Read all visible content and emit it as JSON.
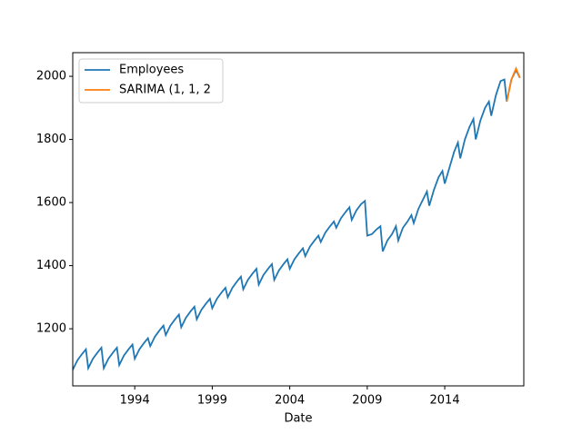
{
  "chart_data": {
    "type": "line",
    "x_label": "Date",
    "xlim": [
      1990,
      2019.1
    ],
    "xticks": [
      1994,
      1999,
      2004,
      2009,
      2014
    ],
    "ylim": [
      1019,
      2075
    ],
    "yticks": [
      1200,
      1400,
      1600,
      1800,
      2000
    ],
    "legend": "upper left",
    "series": [
      {
        "name": "Employees",
        "color": "#1f77b4",
        "x": [
          1990,
          1990.3,
          1990.6,
          1990.85,
          1991,
          1991.3,
          1991.6,
          1991.85,
          1992,
          1992.3,
          1992.6,
          1992.85,
          1993,
          1993.3,
          1993.6,
          1993.85,
          1994,
          1994.3,
          1994.6,
          1994.85,
          1995,
          1995.3,
          1995.6,
          1995.85,
          1996,
          1996.3,
          1996.6,
          1996.85,
          1997,
          1997.3,
          1997.6,
          1997.85,
          1998,
          1998.3,
          1998.6,
          1998.85,
          1999,
          1999.3,
          1999.6,
          1999.85,
          2000,
          2000.3,
          2000.6,
          2000.85,
          2001,
          2001.3,
          2001.6,
          2001.85,
          2002,
          2002.3,
          2002.6,
          2002.85,
          2003,
          2003.3,
          2003.6,
          2003.85,
          2004,
          2004.3,
          2004.6,
          2004.85,
          2005,
          2005.3,
          2005.6,
          2005.85,
          2006,
          2006.3,
          2006.6,
          2006.85,
          2007,
          2007.3,
          2007.6,
          2007.85,
          2008,
          2008.3,
          2008.6,
          2008.85,
          2009,
          2009.3,
          2009.6,
          2009.85,
          2010,
          2010.3,
          2010.6,
          2010.85,
          2011,
          2011.3,
          2011.6,
          2011.85,
          2012,
          2012.3,
          2012.6,
          2012.85,
          2013,
          2013.3,
          2013.6,
          2013.85,
          2014,
          2014.3,
          2014.6,
          2014.85,
          2015,
          2015.3,
          2015.6,
          2015.85,
          2016,
          2016.3,
          2016.6,
          2016.85,
          2017,
          2017.3,
          2017.6,
          2017.85,
          2018,
          2018.3,
          2018.6,
          2018.85
        ],
        "values": [
          1070,
          1100,
          1120,
          1135,
          1075,
          1105,
          1125,
          1140,
          1075,
          1105,
          1125,
          1140,
          1085,
          1115,
          1135,
          1150,
          1105,
          1135,
          1155,
          1170,
          1145,
          1175,
          1195,
          1210,
          1180,
          1210,
          1230,
          1245,
          1205,
          1235,
          1255,
          1270,
          1230,
          1260,
          1280,
          1295,
          1265,
          1295,
          1315,
          1330,
          1300,
          1330,
          1350,
          1365,
          1325,
          1355,
          1375,
          1390,
          1340,
          1370,
          1390,
          1405,
          1355,
          1385,
          1405,
          1420,
          1390,
          1420,
          1440,
          1455,
          1430,
          1460,
          1480,
          1495,
          1475,
          1505,
          1525,
          1540,
          1520,
          1550,
          1570,
          1585,
          1545,
          1575,
          1595,
          1605,
          1495,
          1500,
          1515,
          1525,
          1445,
          1480,
          1500,
          1525,
          1480,
          1520,
          1540,
          1560,
          1535,
          1580,
          1610,
          1635,
          1590,
          1640,
          1680,
          1700,
          1660,
          1710,
          1760,
          1790,
          1740,
          1800,
          1840,
          1865,
          1800,
          1860,
          1900,
          1920,
          1875,
          1940,
          1985,
          1990,
          1920,
          1990,
          2020,
          1995
        ]
      },
      {
        "name": "SARIMA (1, 1, 2",
        "color": "#ff7f0e",
        "x": [
          2018,
          2018.3,
          2018.6,
          2018.85
        ],
        "values": [
          1920,
          1990,
          2025,
          1995
        ]
      }
    ]
  }
}
